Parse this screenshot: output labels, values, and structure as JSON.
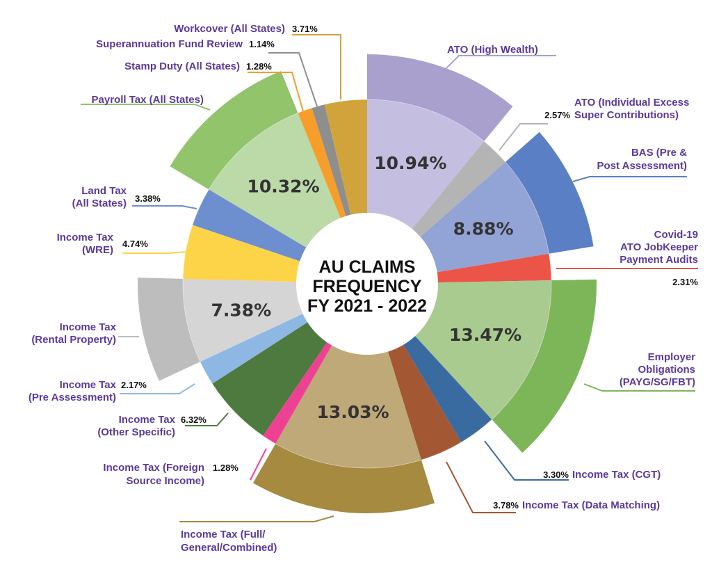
{
  "chart_data": {
    "type": "pie",
    "title": [
      "AU CLAIMS",
      "FREQUENCY",
      "FY 2021 - 2022"
    ],
    "slices": [
      {
        "name": [
          "ATO (High Wealth)"
        ],
        "value": 10.94,
        "label": "10.94%",
        "color": "#a9a0cd",
        "inner_color": "#c4bfe0"
      },
      {
        "name": [
          "ATO (Individual Excess",
          "Super Contributions)"
        ],
        "value": 2.57,
        "label": "2.57%",
        "color": "#b4b4b4",
        "inner_color": "#b4b4b4"
      },
      {
        "name": [
          "BAS (Pre &",
          "Post Assessment)"
        ],
        "value": 8.88,
        "label": "8.88%",
        "color": "#5b7fc4",
        "inner_color": "#92a3d6"
      },
      {
        "name": [
          "Covid-19",
          "ATO JobKeeper",
          "Payment Audits"
        ],
        "value": 2.31,
        "label": "2.31%",
        "color": "#ec5447",
        "inner_color": "#ec5447"
      },
      {
        "name": [
          "Employer",
          "Obligations",
          "(PAYG/SG/FBT)"
        ],
        "value": 13.47,
        "label": "13.47%",
        "color": "#7cb659",
        "inner_color": "#a9cb90"
      },
      {
        "name": [
          "Income Tax (CGT)"
        ],
        "value": 3.3,
        "label": "3.30%",
        "color": "#3a6ba0",
        "inner_color": "#3a6ba0"
      },
      {
        "name": [
          "Income Tax (Data Matching)"
        ],
        "value": 3.78,
        "label": "3.78%",
        "color": "#a35833",
        "inner_color": "#a35833"
      },
      {
        "name": [
          "Income Tax (Full/",
          "General/Combined)"
        ],
        "value": 13.03,
        "label": "13.03%",
        "color": "#a58a3f",
        "inner_color": "#c0a978"
      },
      {
        "name": [
          "Income Tax (Foreign",
          "Source Income)"
        ],
        "value": 1.28,
        "label": "1.28%",
        "color": "#ee4194",
        "inner_color": "#ee4194"
      },
      {
        "name": [
          "Income Tax",
          "(Other Specific)"
        ],
        "value": 6.32,
        "label": "6.32%",
        "color": "#4e7a3f",
        "inner_color": "#4e7a3f"
      },
      {
        "name": [
          "Income Tax",
          "(Pre Assessment)"
        ],
        "value": 2.17,
        "label": "2.17%",
        "color": "#8db8e4",
        "inner_color": "#8db8e4"
      },
      {
        "name": [
          "Income Tax",
          "(Rental Property)"
        ],
        "value": 7.38,
        "label": "7.38%",
        "color": "#bdbdbd",
        "inner_color": "#d5d5d5"
      },
      {
        "name": [
          "Income Tax",
          "(WRE)"
        ],
        "value": 4.74,
        "label": "4.74%",
        "color": "#fdd447",
        "inner_color": "#fdd447"
      },
      {
        "name": [
          "Land Tax",
          "(All States)"
        ],
        "value": 3.38,
        "label": "3.38%",
        "color": "#6d8fd0",
        "inner_color": "#6d8fd0"
      },
      {
        "name": [
          "Payroll Tax (All States)"
        ],
        "value": 10.32,
        "label": "10.32%",
        "color": "#91c46b",
        "inner_color": "#bcdaa8"
      },
      {
        "name": [
          "Stamp Duty (All States)"
        ],
        "value": 1.28,
        "label": "1.28%",
        "color": "#f79d2a",
        "inner_color": "#f79d2a"
      },
      {
        "name": [
          "Superannuation Fund Review"
        ],
        "value": 1.14,
        "label": "1.14%",
        "color": "#8e8e8e",
        "inner_color": "#8e8e8e"
      },
      {
        "name": [
          "Workcover (All States)"
        ],
        "value": 3.71,
        "label": "3.71%",
        "color": "#d1a43b",
        "inner_color": "#d1a43b"
      }
    ]
  }
}
